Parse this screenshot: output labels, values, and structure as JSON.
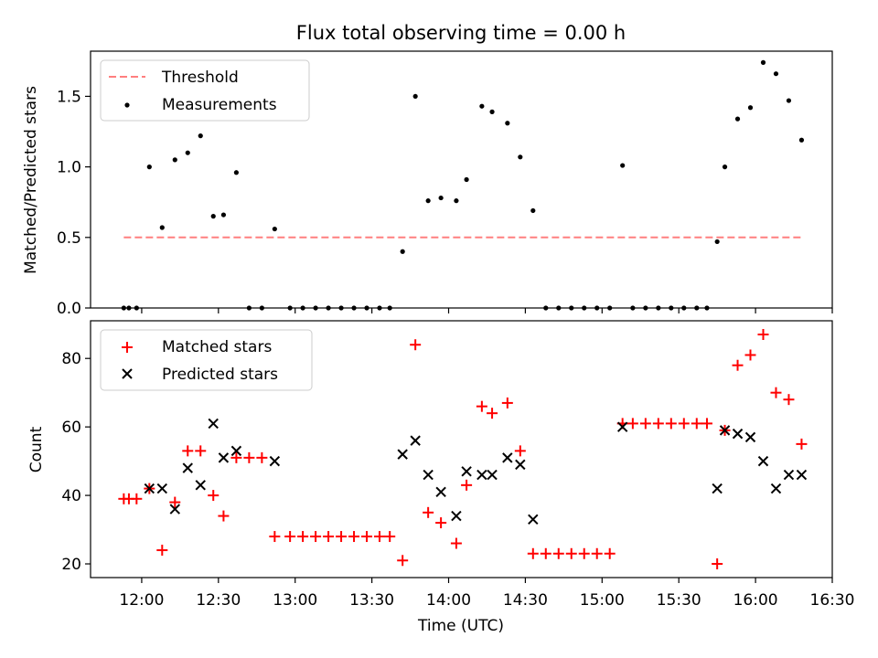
{
  "chart_data": [
    {
      "type": "scatter",
      "title": "Flux total observing time = 0.00 h",
      "xlabel": "",
      "ylabel": "Matched/Predicted stars",
      "xlim": [
        "11:40",
        "16:30"
      ],
      "ylim": [
        0,
        1.82
      ],
      "yticks": [
        0.0,
        0.5,
        1.0,
        1.5
      ],
      "yticklabels": [
        "0.0",
        "0.5",
        "1.0",
        "1.5"
      ],
      "legend_position": "top-left",
      "series": [
        {
          "name": "Threshold",
          "style": "dashed-line",
          "color": "#ff7f7f",
          "x": [
            "11:53",
            "16:18"
          ],
          "y": [
            0.5,
            0.5
          ]
        },
        {
          "name": "Measurements",
          "style": "dot",
          "color": "#000000",
          "x": [
            "11:53",
            "11:55",
            "11:58",
            "12:03",
            "12:08",
            "12:13",
            "12:18",
            "12:23",
            "12:28",
            "12:32",
            "12:37",
            "12:42",
            "12:47",
            "12:52",
            "12:58",
            "13:03",
            "13:08",
            "13:13",
            "13:18",
            "13:23",
            "13:28",
            "13:33",
            "13:37",
            "13:42",
            "13:47",
            "13:52",
            "13:57",
            "14:03",
            "14:07",
            "14:13",
            "14:17",
            "14:23",
            "14:28",
            "14:33",
            "14:38",
            "14:43",
            "14:48",
            "14:53",
            "14:58",
            "15:03",
            "15:08",
            "15:12",
            "15:17",
            "15:22",
            "15:27",
            "15:32",
            "15:37",
            "15:41",
            "15:45",
            "15:48",
            "15:53",
            "15:58",
            "16:03",
            "16:08",
            "16:13",
            "16:18"
          ],
          "y": [
            0,
            0,
            0,
            1.0,
            0.57,
            1.05,
            1.1,
            1.22,
            0.65,
            0.66,
            0.96,
            0,
            0,
            0.56,
            0,
            0,
            0,
            0,
            0,
            0,
            0,
            0,
            0,
            0.4,
            1.5,
            0.76,
            0.78,
            0.76,
            0.91,
            1.43,
            1.39,
            1.31,
            1.07,
            0.69,
            0,
            0,
            0,
            0,
            0,
            0,
            1.01,
            0,
            0,
            0,
            0,
            0,
            0,
            0,
            0.47,
            1.0,
            1.34,
            1.42,
            1.74,
            1.66,
            1.47,
            1.19
          ]
        }
      ]
    },
    {
      "type": "scatter",
      "title": "",
      "xlabel": "Time (UTC)",
      "ylabel": "Count",
      "xlim": [
        "11:40",
        "16:30"
      ],
      "ylim": [
        16,
        91
      ],
      "yticks": [
        20,
        40,
        60,
        80
      ],
      "yticklabels": [
        "20",
        "40",
        "60",
        "80"
      ],
      "xticks": [
        "12:00",
        "12:30",
        "13:00",
        "13:30",
        "14:00",
        "14:30",
        "15:00",
        "15:30",
        "16:00",
        "16:30"
      ],
      "legend_position": "top-left",
      "series": [
        {
          "name": "Matched stars",
          "style": "plus",
          "color": "#ff0000",
          "x": [
            "11:53",
            "11:55",
            "11:58",
            "12:03",
            "12:08",
            "12:13",
            "12:18",
            "12:23",
            "12:28",
            "12:32",
            "12:37",
            "12:42",
            "12:47",
            "12:52",
            "12:58",
            "13:03",
            "13:08",
            "13:13",
            "13:18",
            "13:23",
            "13:28",
            "13:33",
            "13:37",
            "13:42",
            "13:47",
            "13:52",
            "13:57",
            "14:03",
            "14:07",
            "14:13",
            "14:17",
            "14:23",
            "14:28",
            "14:33",
            "14:38",
            "14:43",
            "14:48",
            "14:53",
            "14:58",
            "15:03",
            "15:08",
            "15:12",
            "15:17",
            "15:22",
            "15:27",
            "15:32",
            "15:37",
            "15:41",
            "15:45",
            "15:48",
            "15:53",
            "15:58",
            "16:03",
            "16:08",
            "16:13",
            "16:18"
          ],
          "y": [
            39,
            39,
            39,
            42,
            24,
            38,
            53,
            53,
            40,
            34,
            51,
            51,
            51,
            28,
            28,
            28,
            28,
            28,
            28,
            28,
            28,
            28,
            28,
            21,
            84,
            35,
            32,
            26,
            43,
            66,
            64,
            67,
            53,
            23,
            23,
            23,
            23,
            23,
            23,
            23,
            61,
            61,
            61,
            61,
            61,
            61,
            61,
            61,
            20,
            59,
            78,
            81,
            87,
            70,
            68,
            55
          ]
        },
        {
          "name": "Predicted stars",
          "style": "x",
          "color": "#000000",
          "x": [
            "12:03",
            "12:08",
            "12:13",
            "12:18",
            "12:23",
            "12:28",
            "12:32",
            "12:37",
            "12:52",
            "13:42",
            "13:47",
            "13:52",
            "13:57",
            "14:03",
            "14:07",
            "14:13",
            "14:17",
            "14:23",
            "14:28",
            "14:33",
            "15:08",
            "15:45",
            "15:48",
            "15:53",
            "15:58",
            "16:03",
            "16:08",
            "16:13",
            "16:18"
          ],
          "y": [
            42,
            42,
            36,
            48,
            43,
            61,
            51,
            53,
            50,
            52,
            56,
            46,
            41,
            34,
            47,
            46,
            46,
            51,
            49,
            33,
            60,
            42,
            59,
            58,
            57,
            50,
            42,
            46,
            46
          ]
        }
      ]
    }
  ]
}
